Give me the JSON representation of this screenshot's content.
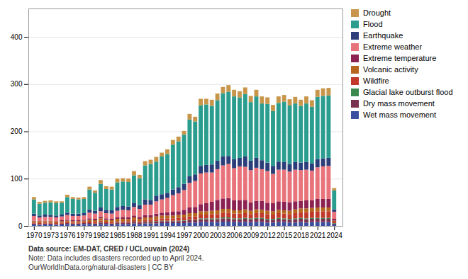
{
  "chart_data": {
    "type": "bar",
    "stacked": true,
    "x": [
      1970,
      1971,
      1972,
      1973,
      1974,
      1975,
      1976,
      1977,
      1978,
      1979,
      1980,
      1981,
      1982,
      1983,
      1984,
      1985,
      1986,
      1987,
      1988,
      1989,
      1990,
      1991,
      1992,
      1993,
      1994,
      1995,
      1996,
      1997,
      1998,
      1999,
      2000,
      2001,
      2002,
      2003,
      2004,
      2005,
      2006,
      2007,
      2008,
      2009,
      2010,
      2011,
      2012,
      2013,
      2014,
      2015,
      2016,
      2017,
      2018,
      2019,
      2020,
      2021,
      2022,
      2023,
      2024
    ],
    "series": [
      {
        "name": "Wet mass movement",
        "color": "#3a4fa0",
        "values": [
          3,
          2,
          3,
          3,
          2,
          3,
          4,
          3,
          3,
          4,
          4,
          3,
          4,
          4,
          3,
          4,
          4,
          4,
          5,
          4,
          5,
          5,
          5,
          6,
          6,
          6,
          6,
          6,
          7,
          7,
          8,
          8,
          8,
          8,
          9,
          9,
          8,
          8,
          8,
          8,
          8,
          8,
          7,
          7,
          8,
          8,
          7,
          7,
          8,
          7,
          8,
          8,
          8,
          8,
          3
        ]
      },
      {
        "name": "Dry mass movement",
        "color": "#7a3050",
        "values": [
          2,
          2,
          2,
          2,
          2,
          2,
          2,
          2,
          2,
          2,
          2,
          2,
          3,
          2,
          2,
          2,
          3,
          3,
          3,
          3,
          3,
          3,
          4,
          4,
          4,
          4,
          4,
          5,
          5,
          5,
          6,
          6,
          6,
          6,
          7,
          7,
          6,
          6,
          7,
          6,
          7,
          7,
          6,
          6,
          7,
          6,
          6,
          7,
          7,
          7,
          7,
          7,
          7,
          7,
          2
        ]
      },
      {
        "name": "Glacial lake outburst flood",
        "color": "#3a8a50",
        "values": [
          0,
          0,
          0,
          0,
          0,
          0,
          0,
          0,
          0,
          0,
          0,
          0,
          1,
          0,
          0,
          1,
          0,
          0,
          1,
          0,
          1,
          1,
          1,
          1,
          1,
          1,
          1,
          1,
          1,
          1,
          2,
          2,
          2,
          2,
          2,
          2,
          2,
          2,
          2,
          2,
          2,
          2,
          2,
          2,
          2,
          2,
          2,
          2,
          2,
          2,
          2,
          2,
          2,
          2,
          1
        ]
      },
      {
        "name": "Wildfire",
        "color": "#c0392b",
        "values": [
          2,
          2,
          2,
          2,
          2,
          2,
          2,
          2,
          2,
          2,
          3,
          3,
          3,
          3,
          3,
          3,
          3,
          3,
          4,
          3,
          4,
          4,
          4,
          5,
          5,
          5,
          6,
          6,
          7,
          7,
          8,
          8,
          9,
          9,
          10,
          10,
          10,
          10,
          10,
          9,
          10,
          10,
          10,
          9,
          10,
          10,
          10,
          11,
          12,
          13,
          13,
          14,
          14,
          14,
          3
        ]
      },
      {
        "name": "Volcanic activity",
        "color": "#b5651d",
        "values": [
          3,
          3,
          3,
          3,
          3,
          3,
          3,
          3,
          3,
          3,
          4,
          4,
          5,
          4,
          4,
          5,
          5,
          4,
          5,
          5,
          5,
          5,
          6,
          6,
          6,
          6,
          6,
          6,
          7,
          7,
          7,
          7,
          7,
          8,
          8,
          8,
          7,
          7,
          8,
          7,
          8,
          7,
          7,
          7,
          7,
          7,
          7,
          8,
          8,
          8,
          8,
          8,
          8,
          8,
          2
        ]
      },
      {
        "name": "Extreme temperature",
        "color": "#8b2252",
        "values": [
          1,
          1,
          1,
          1,
          1,
          2,
          2,
          2,
          2,
          2,
          3,
          3,
          3,
          3,
          3,
          3,
          4,
          4,
          4,
          4,
          5,
          5,
          6,
          6,
          7,
          8,
          8,
          10,
          12,
          13,
          15,
          17,
          19,
          22,
          22,
          23,
          21,
          21,
          20,
          18,
          18,
          19,
          17,
          17,
          18,
          18,
          18,
          17,
          16,
          17,
          16,
          18,
          18,
          18,
          4
        ]
      },
      {
        "name": "Extreme weather",
        "color": "#e8737a",
        "values": [
          10,
          8,
          8,
          8,
          8,
          8,
          10,
          9,
          9,
          9,
          12,
          11,
          12,
          11,
          11,
          14,
          15,
          15,
          18,
          17,
          22,
          22,
          26,
          28,
          30,
          35,
          38,
          42,
          52,
          55,
          65,
          65,
          62,
          65,
          70,
          72,
          68,
          72,
          70,
          68,
          70,
          67,
          67,
          62,
          67,
          68,
          65,
          67,
          65,
          65,
          63,
          67,
          69,
          70,
          15
        ]
      },
      {
        "name": "Earthquake",
        "color": "#2c3e7a",
        "values": [
          5,
          4,
          5,
          4,
          4,
          4,
          5,
          5,
          5,
          5,
          7,
          6,
          8,
          7,
          7,
          8,
          8,
          8,
          9,
          8,
          11,
          10,
          12,
          11,
          11,
          12,
          13,
          13,
          14,
          14,
          16,
          16,
          17,
          18,
          19,
          17,
          19,
          18,
          22,
          20,
          21,
          19,
          18,
          17,
          17,
          16,
          16,
          16,
          16,
          16,
          15,
          17,
          17,
          17,
          5
        ]
      },
      {
        "name": "Flood",
        "color": "#2a9d8f",
        "values": [
          30,
          25,
          25,
          27,
          26,
          25,
          33,
          31,
          30,
          30,
          42,
          38,
          50,
          44,
          44,
          52,
          52,
          52,
          58,
          57,
          72,
          76,
          72,
          80,
          82,
          95,
          97,
          104,
          120,
          112,
          128,
          128,
          124,
          128,
          134,
          136,
          133,
          128,
          132,
          124,
          130,
          120,
          124,
          116,
          124,
          128,
          124,
          124,
          120,
          124,
          120,
          132,
          132,
          132,
          40
        ]
      },
      {
        "name": "Drought",
        "color": "#c8964a",
        "values": [
          5,
          4,
          4,
          4,
          4,
          3,
          5,
          4,
          4,
          4,
          6,
          5,
          8,
          6,
          6,
          8,
          7,
          7,
          9,
          7,
          9,
          9,
          10,
          8,
          10,
          10,
          10,
          8,
          12,
          10,
          14,
          12,
          13,
          14,
          13,
          14,
          14,
          13,
          14,
          13,
          14,
          15,
          14,
          13,
          14,
          14,
          13,
          14,
          13,
          15,
          14,
          15,
          16,
          16,
          5
        ]
      }
    ],
    "xlim": [
      1969,
      2025.5
    ],
    "xticks": [
      1970,
      1973,
      1976,
      1979,
      1982,
      1985,
      1988,
      1991,
      1994,
      1997,
      2000,
      2003,
      2006,
      2009,
      2012,
      2015,
      2018,
      2021,
      2024
    ],
    "ylim": [
      0,
      460
    ],
    "yticks": [
      0,
      100,
      200,
      300,
      400
    ],
    "grid": true,
    "legend": "right",
    "annotations": [
      "Data source: EM-DAT, CRED / UCLouvain (2024)",
      "Note: Data includes disasters recorded up to April 2024.",
      "OurWorldInData.org/natural-disasters | CC BY"
    ]
  }
}
